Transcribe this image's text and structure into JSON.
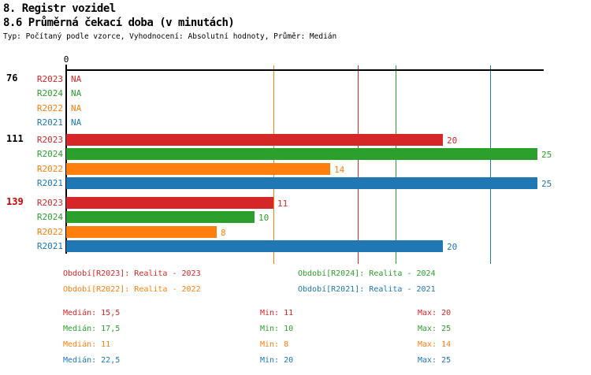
{
  "header": {
    "title1": "8. Registr vozidel",
    "title2": "8.6 Průměrná čekací doba (v minutách)",
    "subtitle": "Typ: Počítaný podle vzorce, Vyhodnocení: Absolutní hodnoty, Průměr: Medián"
  },
  "colors": {
    "series": {
      "R2023": "#d62728",
      "R2024": "#2ca02c",
      "R2022": "#ff7f0e",
      "R2021": "#1f77b4"
    },
    "axis": "#000000",
    "group_label_default": "#000000",
    "group_label_highlight": "#cc0000"
  },
  "chart_data": {
    "type": "bar",
    "orientation": "horizontal",
    "title": "8.6 Průměrná čekací doba (v minutách)",
    "xlabel": "",
    "ylabel": "",
    "xlim": [
      0,
      25.4
    ],
    "x_origin_tick_label": "0",
    "grid": "median-lines-only",
    "series_order": [
      "R2023",
      "R2024",
      "R2022",
      "R2021"
    ],
    "groups": [
      {
        "label": "76",
        "highlighted": false,
        "rows": [
          {
            "series": "R2023",
            "value": null,
            "display": "NA"
          },
          {
            "series": "R2024",
            "value": null,
            "display": "NA"
          },
          {
            "series": "R2022",
            "value": null,
            "display": "NA"
          },
          {
            "series": "R2021",
            "value": null,
            "display": "NA"
          }
        ]
      },
      {
        "label": "111",
        "highlighted": false,
        "rows": [
          {
            "series": "R2023",
            "value": 20,
            "display": "20"
          },
          {
            "series": "R2024",
            "value": 25,
            "display": "25"
          },
          {
            "series": "R2022",
            "value": 14,
            "display": "14"
          },
          {
            "series": "R2021",
            "value": 25,
            "display": "25"
          }
        ]
      },
      {
        "label": "139",
        "highlighted": true,
        "rows": [
          {
            "series": "R2023",
            "value": 11,
            "display": "11"
          },
          {
            "series": "R2024",
            "value": 10,
            "display": "10"
          },
          {
            "series": "R2022",
            "value": 8,
            "display": "8"
          },
          {
            "series": "R2021",
            "value": 20,
            "display": "20"
          }
        ]
      }
    ],
    "median_lines": [
      {
        "series": "R2022",
        "value": 11
      },
      {
        "series": "R2023",
        "value": 15.5
      },
      {
        "series": "R2024",
        "value": 17.5
      },
      {
        "series": "R2021",
        "value": 22.5
      }
    ],
    "legend_position": "bottom-two-columns",
    "stats": {
      "rows": [
        {
          "series": "R2023",
          "median": 15.5,
          "min": 11,
          "max": 20
        },
        {
          "series": "R2024",
          "median": 17.5,
          "min": 10,
          "max": 25
        },
        {
          "series": "R2022",
          "median": 11,
          "min": 8,
          "max": 14
        },
        {
          "series": "R2021",
          "median": 22.5,
          "min": 20,
          "max": 25
        }
      ]
    }
  },
  "legend": {
    "items": [
      {
        "series": "R2023",
        "label": "Období[R2023]: Realita - 2023"
      },
      {
        "series": "R2024",
        "label": "Období[R2024]: Realita - 2024"
      },
      {
        "series": "R2022",
        "label": "Období[R2022]: Realita - 2022"
      },
      {
        "series": "R2021",
        "label": "Období[R2021]: Realita - 2021"
      }
    ]
  },
  "stats_text": {
    "rows": [
      {
        "series": "R2023",
        "median": "Medián: 15,5",
        "min": "Min: 11",
        "max": "Max: 20"
      },
      {
        "series": "R2024",
        "median": "Medián: 17,5",
        "min": "Min: 10",
        "max": "Max: 25"
      },
      {
        "series": "R2022",
        "median": "Medián: 11",
        "min": "Min: 8",
        "max": "Max: 14"
      },
      {
        "series": "R2021",
        "median": "Medián: 22,5",
        "min": "Min: 20",
        "max": "Max: 25"
      }
    ]
  }
}
